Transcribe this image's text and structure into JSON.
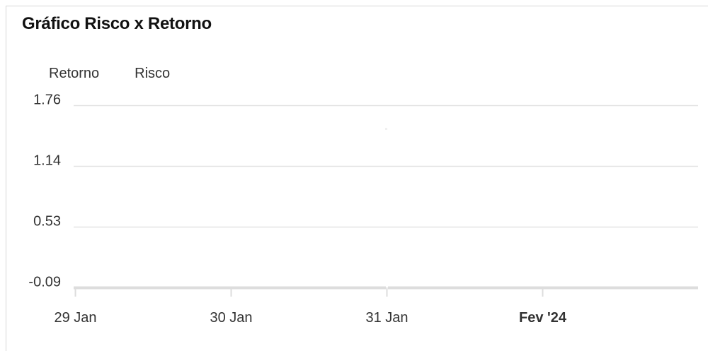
{
  "chart_data": {
    "type": "line",
    "title": "Gráfico Risco x Retorno",
    "legend": [
      "Retorno",
      "Risco"
    ],
    "legend_position": "top-left",
    "grid": true,
    "y_ticks": [
      "1.76",
      "1.14",
      "0.53",
      "-0.09"
    ],
    "y_tick_values": [
      1.76,
      1.14,
      0.53,
      -0.09
    ],
    "ylim": [
      -0.09,
      1.76
    ],
    "x_ticks": [
      {
        "label": "29 Jan",
        "bold": false
      },
      {
        "label": "30 Jan",
        "bold": false
      },
      {
        "label": "31 Jan",
        "bold": false
      },
      {
        "label": "Fev '24",
        "bold": true
      }
    ],
    "series": [
      {
        "name": "Retorno",
        "values": []
      },
      {
        "name": "Risco",
        "values": []
      }
    ]
  }
}
